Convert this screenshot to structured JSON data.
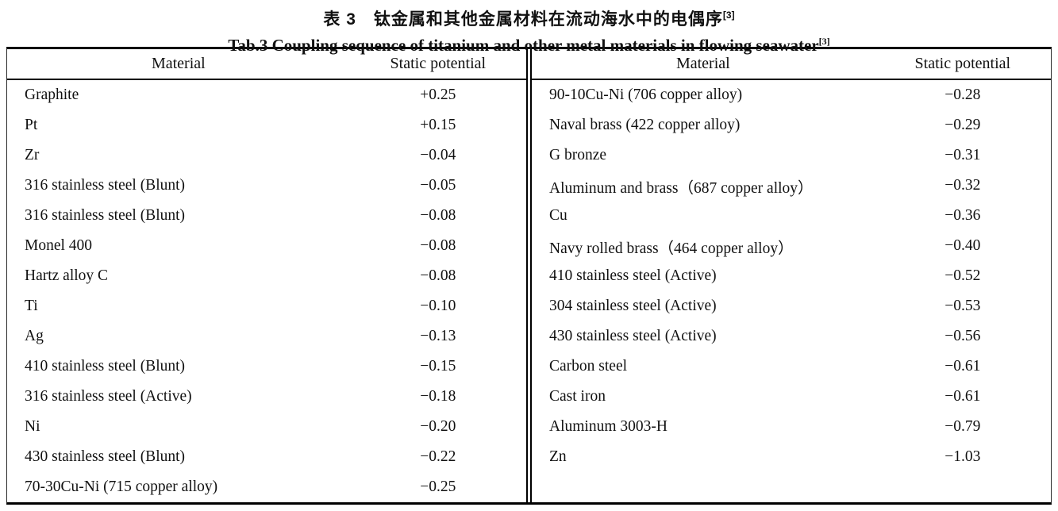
{
  "title": {
    "zh": "表 3　钛金属和其他金属材料在流动海水中的电偶序",
    "zh_ref": "[3]",
    "en": "Tab.3 Coupling sequence of titanium and other metal materials in flowing seawater",
    "en_ref": "[3]"
  },
  "table": {
    "headers": {
      "material": "Material",
      "static_potential": "Static potential"
    },
    "left_rows": [
      {
        "material": "Graphite",
        "potential": "+0.25"
      },
      {
        "material": "Pt",
        "potential": "+0.15"
      },
      {
        "material": "Zr",
        "potential": "−0.04"
      },
      {
        "material": "316 stainless steel (Blunt)",
        "potential": "−0.05"
      },
      {
        "material": "316 stainless steel (Blunt)",
        "potential": "−0.08"
      },
      {
        "material": "Monel 400",
        "potential": "−0.08"
      },
      {
        "material": "Hartz alloy C",
        "potential": "−0.08"
      },
      {
        "material": "Ti",
        "potential": "−0.10"
      },
      {
        "material": "Ag",
        "potential": "−0.13"
      },
      {
        "material": "410 stainless steel (Blunt)",
        "potential": "−0.15"
      },
      {
        "material": "316 stainless steel (Active)",
        "potential": "−0.18"
      },
      {
        "material": "Ni",
        "potential": "−0.20"
      },
      {
        "material": "430 stainless steel (Blunt)",
        "potential": "−0.22"
      },
      {
        "material": "70-30Cu-Ni (715 copper alloy)",
        "potential": "−0.25"
      }
    ],
    "right_rows": [
      {
        "material": "90-10Cu-Ni (706 copper alloy)",
        "potential": "−0.28"
      },
      {
        "material": "Naval brass (422 copper alloy)",
        "potential": "−0.29"
      },
      {
        "material": "G bronze",
        "potential": "−0.31"
      },
      {
        "material": "Aluminum and brass（687 copper alloy）",
        "potential": "−0.32"
      },
      {
        "material": "Cu",
        "potential": "−0.36"
      },
      {
        "material": "Navy rolled brass（464 copper alloy）",
        "potential": "−0.40"
      },
      {
        "material": "410 stainless steel (Active)",
        "potential": "−0.52"
      },
      {
        "material": "304 stainless steel (Active)",
        "potential": "−0.53"
      },
      {
        "material": "430 stainless steel (Active)",
        "potential": "−0.56"
      },
      {
        "material": "Carbon steel",
        "potential": "−0.61"
      },
      {
        "material": "Cast iron",
        "potential": "−0.61"
      },
      {
        "material": "Aluminum 3003-H",
        "potential": "−0.79"
      },
      {
        "material": "Zn",
        "potential": "−1.03"
      }
    ]
  },
  "colors": {
    "background": "#ffffff",
    "text": "#111111",
    "border": "#000000"
  }
}
